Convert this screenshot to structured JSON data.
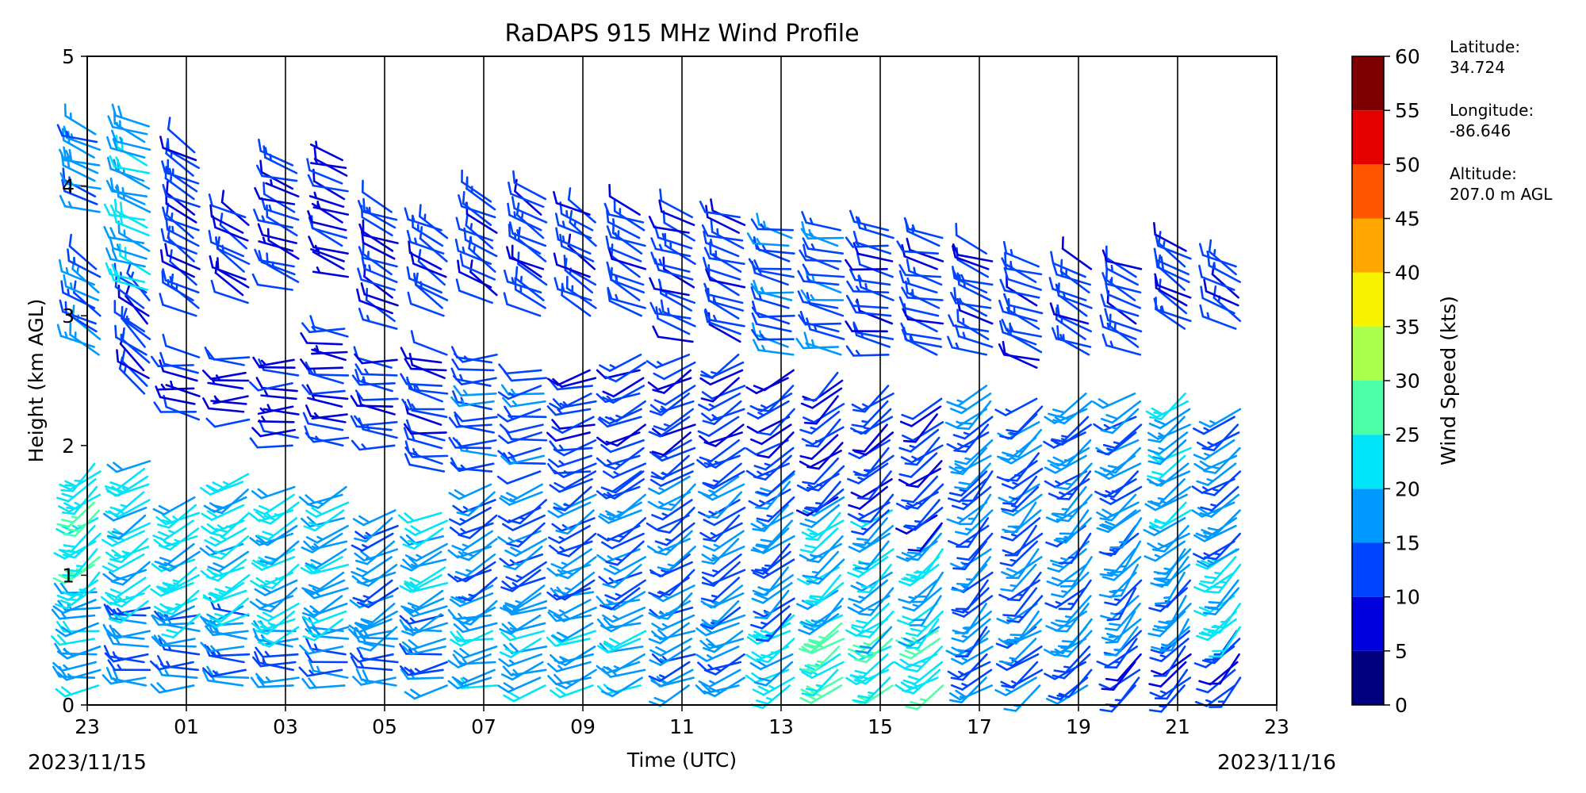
{
  "chart_data": {
    "type": "wind-barb",
    "title": "RaDAPS 915 MHz Wind Profile",
    "xlabel": "Time (UTC)",
    "ylabel": "Height (km AGL)",
    "date_start": "2023/11/15",
    "date_end": "2023/11/16",
    "x_range_hours": [
      23,
      47
    ],
    "ylim": [
      0,
      5
    ],
    "x_ticks": [
      "23",
      "01",
      "03",
      "05",
      "07",
      "09",
      "11",
      "13",
      "15",
      "17",
      "19",
      "21",
      "23"
    ],
    "y_ticks": [
      "0",
      "1",
      "2",
      "3",
      "4",
      "5"
    ],
    "hour_gridlines": true,
    "colorbar": {
      "label": "Wind Speed (kts)",
      "levels": [
        0,
        5,
        10,
        15,
        20,
        25,
        30,
        35,
        40,
        45,
        50,
        55,
        60
      ],
      "colors": [
        "#00007f",
        "#0000dc",
        "#0044ff",
        "#0099ff",
        "#00e5f7",
        "#4cffa9",
        "#a9ff4c",
        "#f7f300",
        "#ffa700",
        "#ff5600",
        "#e50000",
        "#7f0000"
      ]
    },
    "profiles": [
      {
        "time": 23.2,
        "bands": [
          {
            "from": 0.15,
            "to": 0.9,
            "speed": 18,
            "dir": 260
          },
          {
            "from": 0.9,
            "to": 1.9,
            "speed": 23,
            "dir": 230
          },
          {
            "from": 2.7,
            "to": 3.4,
            "speed": 14,
            "dir": 300
          },
          {
            "from": 3.8,
            "to": 4.4,
            "speed": 17,
            "dir": 290
          }
        ]
      },
      {
        "time": 24.2,
        "bands": [
          {
            "from": 0.15,
            "to": 0.8,
            "speed": 16,
            "dir": 270
          },
          {
            "from": 0.8,
            "to": 1.9,
            "speed": 22,
            "dir": 240
          },
          {
            "from": 2.4,
            "to": 3.2,
            "speed": 12,
            "dir": 310
          },
          {
            "from": 3.2,
            "to": 4.5,
            "speed": 19,
            "dir": 290
          }
        ]
      },
      {
        "time": 25.2,
        "bands": [
          {
            "from": 0.15,
            "to": 0.7,
            "speed": 16,
            "dir": 270
          },
          {
            "from": 0.7,
            "to": 1.6,
            "speed": 22,
            "dir": 240
          },
          {
            "from": 2.2,
            "to": 2.7,
            "speed": 9,
            "dir": 280
          },
          {
            "from": 3.0,
            "to": 4.3,
            "speed": 12,
            "dir": 300
          }
        ]
      },
      {
        "time": 26.2,
        "bands": [
          {
            "from": 0.15,
            "to": 0.7,
            "speed": 16,
            "dir": 270
          },
          {
            "from": 0.7,
            "to": 1.8,
            "speed": 22,
            "dir": 240
          },
          {
            "from": 2.2,
            "to": 2.7,
            "speed": 8,
            "dir": 270
          },
          {
            "from": 3.1,
            "to": 3.8,
            "speed": 11,
            "dir": 300
          }
        ]
      },
      {
        "time": 27.2,
        "bands": [
          {
            "from": 0.15,
            "to": 0.6,
            "speed": 16,
            "dir": 270
          },
          {
            "from": 0.6,
            "to": 1.7,
            "speed": 21,
            "dir": 240
          },
          {
            "from": 2.0,
            "to": 2.7,
            "speed": 8,
            "dir": 270
          },
          {
            "from": 3.2,
            "to": 4.2,
            "speed": 10,
            "dir": 290
          }
        ]
      },
      {
        "time": 28.2,
        "bands": [
          {
            "from": 0.15,
            "to": 0.6,
            "speed": 15,
            "dir": 270
          },
          {
            "from": 0.6,
            "to": 1.7,
            "speed": 18,
            "dir": 245
          },
          {
            "from": 2.0,
            "to": 2.9,
            "speed": 10,
            "dir": 275
          },
          {
            "from": 3.3,
            "to": 4.2,
            "speed": 9,
            "dir": 290
          }
        ]
      },
      {
        "time": 29.2,
        "bands": [
          {
            "from": 0.15,
            "to": 0.6,
            "speed": 15,
            "dir": 270
          },
          {
            "from": 0.6,
            "to": 1.5,
            "speed": 17,
            "dir": 240
          },
          {
            "from": 2.0,
            "to": 2.7,
            "speed": 11,
            "dir": 275
          },
          {
            "from": 2.9,
            "to": 3.8,
            "speed": 11,
            "dir": 295
          }
        ]
      },
      {
        "time": 30.2,
        "bands": [
          {
            "from": 0.15,
            "to": 0.7,
            "speed": 16,
            "dir": 260
          },
          {
            "from": 0.7,
            "to": 1.5,
            "speed": 19,
            "dir": 245
          },
          {
            "from": 1.8,
            "to": 2.7,
            "speed": 11,
            "dir": 280
          },
          {
            "from": 3.0,
            "to": 3.7,
            "speed": 12,
            "dir": 300
          }
        ]
      },
      {
        "time": 31.2,
        "bands": [
          {
            "from": 0.15,
            "to": 0.8,
            "speed": 18,
            "dir": 255
          },
          {
            "from": 0.8,
            "to": 1.7,
            "speed": 15,
            "dir": 240
          },
          {
            "from": 1.8,
            "to": 2.7,
            "speed": 13,
            "dir": 270
          },
          {
            "from": 3.1,
            "to": 3.9,
            "speed": 12,
            "dir": 300
          }
        ]
      },
      {
        "time": 32.2,
        "bands": [
          {
            "from": 0.15,
            "to": 0.8,
            "speed": 19,
            "dir": 250
          },
          {
            "from": 0.8,
            "to": 1.7,
            "speed": 15,
            "dir": 240
          },
          {
            "from": 1.8,
            "to": 2.6,
            "speed": 13,
            "dir": 260
          },
          {
            "from": 3.0,
            "to": 3.9,
            "speed": 12,
            "dir": 300
          }
        ]
      },
      {
        "time": 33.2,
        "bands": [
          {
            "from": 0.15,
            "to": 0.9,
            "speed": 18,
            "dir": 250
          },
          {
            "from": 0.9,
            "to": 1.8,
            "speed": 15,
            "dir": 240
          },
          {
            "from": 1.8,
            "to": 2.6,
            "speed": 12,
            "dir": 255
          },
          {
            "from": 3.0,
            "to": 3.8,
            "speed": 12,
            "dir": 300
          }
        ]
      },
      {
        "time": 34.2,
        "bands": [
          {
            "from": 0.15,
            "to": 0.9,
            "speed": 18,
            "dir": 250
          },
          {
            "from": 0.9,
            "to": 1.8,
            "speed": 15,
            "dir": 240
          },
          {
            "from": 1.8,
            "to": 2.7,
            "speed": 12,
            "dir": 245
          },
          {
            "from": 3.0,
            "to": 3.8,
            "speed": 12,
            "dir": 295
          }
        ]
      },
      {
        "time": 35.2,
        "bands": [
          {
            "from": 0.15,
            "to": 0.8,
            "speed": 17,
            "dir": 245
          },
          {
            "from": 0.8,
            "to": 1.8,
            "speed": 14,
            "dir": 235
          },
          {
            "from": 1.8,
            "to": 2.7,
            "speed": 12,
            "dir": 240
          },
          {
            "from": 2.8,
            "to": 3.8,
            "speed": 12,
            "dir": 290
          }
        ]
      },
      {
        "time": 36.2,
        "bands": [
          {
            "from": 0.15,
            "to": 0.8,
            "speed": 17,
            "dir": 245
          },
          {
            "from": 0.8,
            "to": 1.8,
            "speed": 14,
            "dir": 235
          },
          {
            "from": 1.8,
            "to": 2.7,
            "speed": 12,
            "dir": 240
          },
          {
            "from": 2.8,
            "to": 3.8,
            "speed": 12,
            "dir": 290
          }
        ]
      },
      {
        "time": 37.2,
        "bands": [
          {
            "from": 0.15,
            "to": 0.7,
            "speed": 22,
            "dir": 240
          },
          {
            "from": 0.7,
            "to": 1.8,
            "speed": 16,
            "dir": 230
          },
          {
            "from": 1.8,
            "to": 2.6,
            "speed": 11,
            "dir": 235
          },
          {
            "from": 2.7,
            "to": 3.7,
            "speed": 13,
            "dir": 280
          }
        ]
      },
      {
        "time": 38.2,
        "bands": [
          {
            "from": 0.15,
            "to": 0.7,
            "speed": 25,
            "dir": 235
          },
          {
            "from": 0.7,
            "to": 1.6,
            "speed": 19,
            "dir": 230
          },
          {
            "from": 1.6,
            "to": 2.6,
            "speed": 11,
            "dir": 230
          },
          {
            "from": 2.7,
            "to": 3.7,
            "speed": 13,
            "dir": 280
          }
        ]
      },
      {
        "time": 39.2,
        "bands": [
          {
            "from": 0.15,
            "to": 0.6,
            "speed": 24,
            "dir": 235
          },
          {
            "from": 0.6,
            "to": 1.5,
            "speed": 19,
            "dir": 230
          },
          {
            "from": 1.5,
            "to": 2.5,
            "speed": 12,
            "dir": 230
          },
          {
            "from": 2.7,
            "to": 3.7,
            "speed": 12,
            "dir": 280
          }
        ]
      },
      {
        "time": 40.2,
        "bands": [
          {
            "from": 0.15,
            "to": 0.6,
            "speed": 23,
            "dir": 235
          },
          {
            "from": 0.6,
            "to": 1.4,
            "speed": 20,
            "dir": 225
          },
          {
            "from": 1.4,
            "to": 2.4,
            "speed": 12,
            "dir": 230
          },
          {
            "from": 2.7,
            "to": 3.6,
            "speed": 12,
            "dir": 285
          }
        ]
      },
      {
        "time": 41.2,
        "bands": [
          {
            "from": 0.15,
            "to": 0.6,
            "speed": 16,
            "dir": 235
          },
          {
            "from": 0.6,
            "to": 1.8,
            "speed": 14,
            "dir": 225
          },
          {
            "from": 1.8,
            "to": 2.5,
            "speed": 16,
            "dir": 230
          },
          {
            "from": 2.7,
            "to": 3.5,
            "speed": 12,
            "dir": 290
          }
        ]
      },
      {
        "time": 42.2,
        "bands": [
          {
            "from": 0.15,
            "to": 0.6,
            "speed": 14,
            "dir": 235
          },
          {
            "from": 0.6,
            "to": 1.7,
            "speed": 15,
            "dir": 225
          },
          {
            "from": 1.7,
            "to": 2.4,
            "speed": 15,
            "dir": 230
          },
          {
            "from": 2.6,
            "to": 3.4,
            "speed": 12,
            "dir": 290
          }
        ]
      },
      {
        "time": 43.2,
        "bands": [
          {
            "from": 0.15,
            "to": 0.6,
            "speed": 13,
            "dir": 230
          },
          {
            "from": 0.6,
            "to": 1.8,
            "speed": 16,
            "dir": 225
          },
          {
            "from": 1.8,
            "to": 2.4,
            "speed": 16,
            "dir": 235
          },
          {
            "from": 2.7,
            "to": 3.4,
            "speed": 12,
            "dir": 295
          }
        ]
      },
      {
        "time": 44.2,
        "bands": [
          {
            "from": 0.15,
            "to": 0.6,
            "speed": 12,
            "dir": 225
          },
          {
            "from": 0.6,
            "to": 1.5,
            "speed": 17,
            "dir": 220
          },
          {
            "from": 1.5,
            "to": 2.4,
            "speed": 16,
            "dir": 235
          },
          {
            "from": 2.7,
            "to": 3.4,
            "speed": 12,
            "dir": 295
          }
        ]
      },
      {
        "time": 45.2,
        "bands": [
          {
            "from": 0.15,
            "to": 0.6,
            "speed": 12,
            "dir": 225
          },
          {
            "from": 0.6,
            "to": 1.2,
            "speed": 16,
            "dir": 220
          },
          {
            "from": 1.2,
            "to": 2.4,
            "speed": 18,
            "dir": 235
          },
          {
            "from": 2.9,
            "to": 3.5,
            "speed": 12,
            "dir": 300
          }
        ]
      },
      {
        "time": 46.2,
        "bands": [
          {
            "from": 0.15,
            "to": 0.6,
            "speed": 12,
            "dir": 225
          },
          {
            "from": 0.6,
            "to": 1.2,
            "speed": 21,
            "dir": 225
          },
          {
            "from": 1.2,
            "to": 2.3,
            "speed": 16,
            "dir": 235
          },
          {
            "from": 2.9,
            "to": 3.4,
            "speed": 12,
            "dir": 300
          }
        ]
      }
    ]
  },
  "station": {
    "latitude_label": "Latitude:",
    "latitude_value": "34.724",
    "longitude_label": "Longitude:",
    "longitude_value": "-86.646",
    "altitude_label": "Altitude:",
    "altitude_value": "207.0 m AGL"
  }
}
